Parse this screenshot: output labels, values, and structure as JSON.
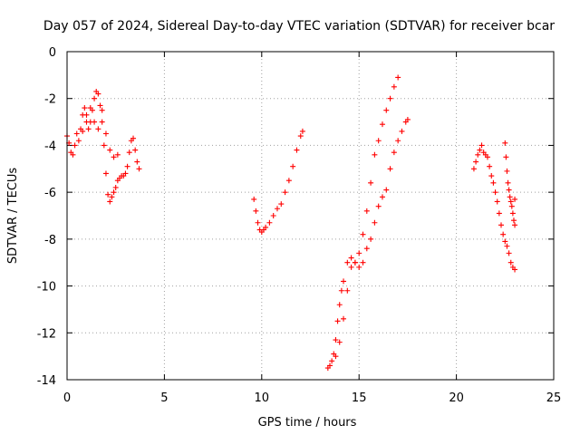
{
  "chart_data": {
    "type": "scatter",
    "title": "Day 057 of 2024, Sidereal Day-to-day VTEC variation (SDTVAR) for receiver bcar",
    "xlabel": "GPS time / hours",
    "ylabel": "SDTVAR / TECUs",
    "xlim": [
      0,
      25
    ],
    "ylim": [
      -14,
      0
    ],
    "xticks": [
      0,
      5,
      10,
      15,
      20,
      25
    ],
    "yticks": [
      0,
      -2,
      -4,
      -6,
      -8,
      -10,
      -12,
      -14
    ],
    "grid": true,
    "marker": "plus",
    "marker_color": "#ff0000",
    "series": [
      {
        "x": [
          0.0,
          0.1,
          0.2,
          0.3,
          0.4,
          0.5,
          0.6,
          0.7,
          0.8,
          0.9,
          1.0,
          1.1,
          1.2,
          1.3,
          1.4,
          1.5,
          1.6,
          1.7,
          1.8,
          1.9,
          2.0,
          2.1,
          2.2,
          2.3,
          2.4,
          2.5,
          2.6,
          2.7,
          2.8,
          2.9,
          3.0,
          3.1,
          3.2,
          3.3,
          3.4,
          3.5,
          3.6,
          3.7
        ],
        "y": [
          -3.6,
          -3.9,
          -4.3,
          -4.4,
          -4.0,
          -3.5,
          -3.8,
          -3.3,
          -2.7,
          -2.4,
          -3.0,
          -3.3,
          -3.0,
          -2.5,
          -2.0,
          -1.7,
          -1.8,
          -2.3,
          -3.0,
          -4.0,
          -5.2,
          -6.1,
          -6.4,
          -6.2,
          -6.0,
          -5.8,
          -5.5,
          -5.4,
          -5.3,
          -5.3,
          -5.2,
          -4.9,
          -4.3,
          -3.8,
          -3.7,
          -4.2,
          -4.7,
          -5.0
        ]
      },
      {
        "x": [
          0.8,
          1.0,
          1.2,
          1.4,
          1.6,
          1.8,
          2.0,
          2.2,
          2.4,
          2.6
        ],
        "y": [
          -3.4,
          -2.7,
          -2.4,
          -3.0,
          -3.3,
          -2.5,
          -3.5,
          -4.2,
          -4.5,
          -4.4
        ]
      },
      {
        "x": [
          9.6,
          9.7,
          9.8,
          9.9,
          10.0,
          10.1,
          10.2,
          10.4,
          10.6,
          10.8,
          11.0,
          11.2,
          11.4,
          11.6,
          11.8,
          12.0,
          12.1
        ],
        "y": [
          -6.3,
          -6.8,
          -7.3,
          -7.6,
          -7.7,
          -7.6,
          -7.5,
          -7.3,
          -7.0,
          -6.7,
          -6.5,
          -6.0,
          -5.5,
          -4.9,
          -4.2,
          -3.6,
          -3.4
        ]
      },
      {
        "x": [
          13.4,
          13.5,
          13.6,
          13.7,
          13.8,
          13.9,
          14.0,
          14.1,
          14.2,
          14.4,
          14.6,
          14.8,
          15.0,
          15.2,
          15.4,
          15.6,
          15.8,
          16.0,
          16.2,
          16.4,
          16.6,
          16.8,
          17.0
        ],
        "y": [
          -13.5,
          -13.4,
          -13.2,
          -12.9,
          -12.3,
          -11.5,
          -10.8,
          -10.2,
          -9.8,
          -9.0,
          -8.8,
          -9.0,
          -8.6,
          -7.8,
          -6.8,
          -5.6,
          -4.4,
          -3.8,
          -3.1,
          -2.5,
          -2.0,
          -1.5,
          -1.1
        ]
      },
      {
        "x": [
          13.8,
          14.0,
          14.2,
          14.4,
          14.6,
          14.8,
          15.0,
          15.2,
          15.4,
          15.6,
          15.8,
          16.0,
          16.2,
          16.4,
          16.6,
          16.8,
          17.0,
          17.2,
          17.4,
          17.5
        ],
        "y": [
          -13.0,
          -12.4,
          -11.4,
          -10.2,
          -9.2,
          -9.0,
          -9.2,
          -9.0,
          -8.4,
          -8.0,
          -7.3,
          -6.6,
          -6.2,
          -5.9,
          -5.0,
          -4.3,
          -3.8,
          -3.4,
          -3.0,
          -2.9
        ]
      },
      {
        "x": [
          20.9,
          21.0,
          21.1,
          21.2,
          21.3,
          21.4,
          21.5,
          21.6,
          21.7,
          21.8,
          21.9,
          22.0,
          22.1,
          22.2,
          22.3,
          22.4,
          22.5,
          22.6,
          22.7,
          22.8,
          22.9,
          23.0
        ],
        "y": [
          -5.0,
          -4.7,
          -4.4,
          -4.2,
          -4.0,
          -4.3,
          -4.4,
          -4.5,
          -4.9,
          -5.3,
          -5.6,
          -6.0,
          -6.4,
          -6.9,
          -7.4,
          -7.8,
          -8.1,
          -8.3,
          -8.6,
          -9.0,
          -9.2,
          -9.3
        ]
      },
      {
        "x": [
          22.5,
          22.55,
          22.6,
          22.65,
          22.7,
          22.75,
          22.8,
          22.85,
          22.9,
          22.95,
          23.0,
          23.0
        ],
        "y": [
          -3.9,
          -4.5,
          -5.1,
          -5.6,
          -5.9,
          -6.2,
          -6.4,
          -6.6,
          -6.9,
          -7.2,
          -7.4,
          -6.3
        ]
      }
    ]
  }
}
